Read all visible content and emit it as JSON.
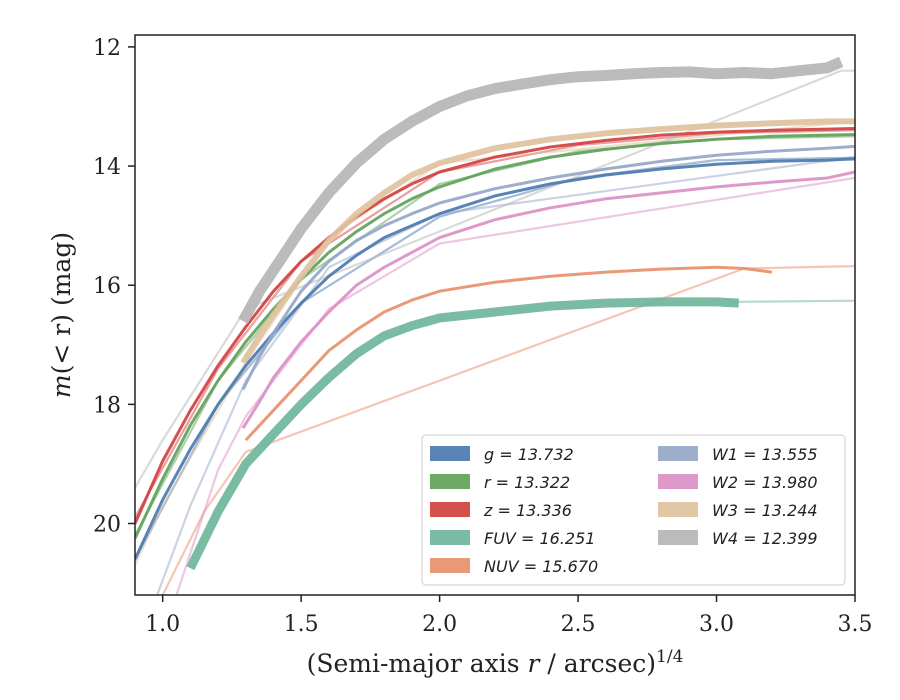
{
  "chart_data": {
    "type": "line",
    "xlabel_main": "(Semi-major axis ",
    "xlabel_var": "r",
    "xlabel_tail": " / arcsec)",
    "xlabel_exp": "1/4",
    "ylabel_main": "m",
    "ylabel_rest": "(< r) (mag)",
    "x_ticks": [
      "1.0",
      "1.5",
      "2.0",
      "2.5",
      "3.0",
      "3.5"
    ],
    "y_ticks": [
      "12",
      "14",
      "16",
      "18",
      "20"
    ],
    "xlim": [
      0.9,
      3.5
    ],
    "ylim": [
      21.2,
      11.8
    ],
    "y_inverted": true,
    "grid": false,
    "legend_position": "lower-right",
    "series": [
      {
        "name": "g",
        "label": "g = 13.732",
        "color": "#4c7aaf",
        "ext_x": [
          0.9,
          1.2,
          1.5,
          2.0,
          2.5,
          3.0,
          3.5
        ],
        "ext_y": [
          20.6,
          18.0,
          16.3,
          14.85,
          14.2,
          13.9,
          13.86
        ],
        "x": [
          0.9,
          1.0,
          1.1,
          1.2,
          1.3,
          1.4,
          1.5,
          1.6,
          1.7,
          1.8,
          1.9,
          2.0,
          2.2,
          2.4,
          2.6,
          2.8,
          3.0,
          3.2,
          3.4,
          3.5
        ],
        "y": [
          20.6,
          19.6,
          18.75,
          18.0,
          17.35,
          16.8,
          16.3,
          15.85,
          15.5,
          15.2,
          15.0,
          14.8,
          14.5,
          14.3,
          14.15,
          14.05,
          13.97,
          13.92,
          13.9,
          13.88
        ],
        "w": 3
      },
      {
        "name": "r",
        "label": "r = 13.322",
        "color": "#5fa25a",
        "ext_x": [
          0.9,
          1.2,
          1.5,
          2.0,
          2.5,
          3.0,
          3.5
        ],
        "ext_y": [
          20.2,
          17.6,
          15.9,
          14.3,
          13.75,
          13.55,
          13.5
        ],
        "x": [
          0.9,
          1.0,
          1.1,
          1.2,
          1.3,
          1.4,
          1.5,
          1.6,
          1.7,
          1.8,
          1.9,
          2.0,
          2.2,
          2.4,
          2.6,
          2.8,
          3.0,
          3.2,
          3.4,
          3.5
        ],
        "y": [
          20.25,
          19.25,
          18.35,
          17.6,
          16.95,
          16.4,
          15.9,
          15.45,
          15.1,
          14.8,
          14.55,
          14.35,
          14.05,
          13.85,
          13.72,
          13.62,
          13.55,
          13.5,
          13.48,
          13.47
        ],
        "w": 3
      },
      {
        "name": "z",
        "label": "z = 13.336",
        "color": "#d14040",
        "ext_x": [
          0.9,
          1.2,
          1.5,
          2.0,
          2.5,
          3.0,
          3.5
        ],
        "ext_y": [
          19.9,
          17.4,
          15.6,
          14.1,
          13.65,
          13.45,
          13.4
        ],
        "x": [
          0.9,
          1.0,
          1.1,
          1.2,
          1.3,
          1.4,
          1.5,
          1.6,
          1.7,
          1.8,
          1.9,
          2.0,
          2.2,
          2.4,
          2.6,
          2.8,
          3.0,
          3.2,
          3.4,
          3.5
        ],
        "y": [
          20.0,
          18.95,
          18.1,
          17.35,
          16.7,
          16.1,
          15.6,
          15.2,
          14.85,
          14.55,
          14.3,
          14.1,
          13.85,
          13.68,
          13.57,
          13.48,
          13.43,
          13.4,
          13.38,
          13.37
        ],
        "w": 3
      },
      {
        "name": "FUV",
        "label": "FUV = 16.251",
        "color": "#6fb59b",
        "ext_x": [
          3.05,
          3.5
        ],
        "ext_y": [
          16.28,
          16.26
        ],
        "x": [
          1.1,
          1.2,
          1.3,
          1.4,
          1.5,
          1.6,
          1.7,
          1.8,
          1.9,
          2.0,
          2.2,
          2.4,
          2.6,
          2.8,
          3.0,
          3.08
        ],
        "y": [
          20.75,
          19.8,
          19.0,
          18.5,
          18.0,
          17.55,
          17.15,
          16.85,
          16.68,
          16.55,
          16.45,
          16.35,
          16.3,
          16.28,
          16.28,
          16.3
        ],
        "w": 9
      },
      {
        "name": "NUV",
        "label": "NUV = 15.670",
        "color": "#e8906a",
        "ext_x": [
          1.0,
          1.15,
          1.3,
          3.1,
          3.5
        ],
        "ext_y": [
          21.2,
          19.8,
          18.8,
          15.72,
          15.68
        ],
        "x": [
          1.3,
          1.4,
          1.5,
          1.6,
          1.7,
          1.8,
          1.9,
          2.0,
          2.2,
          2.4,
          2.6,
          2.8,
          3.0,
          3.1,
          3.2
        ],
        "y": [
          18.6,
          18.1,
          17.6,
          17.1,
          16.75,
          16.45,
          16.25,
          16.1,
          15.95,
          15.85,
          15.78,
          15.73,
          15.7,
          15.72,
          15.78
        ],
        "w": 3
      },
      {
        "name": "W1",
        "label": "W1 = 13.555",
        "color": "#96a6c8",
        "ext_x": [
          0.98,
          1.1,
          1.3,
          1.6,
          2.0,
          3.5
        ],
        "ext_y": [
          21.2,
          19.7,
          17.6,
          15.7,
          14.8,
          13.85
        ],
        "x": [
          1.29,
          1.35,
          1.4,
          1.5,
          1.6,
          1.7,
          1.8,
          1.9,
          2.0,
          2.2,
          2.4,
          2.6,
          2.8,
          3.0,
          3.2,
          3.4,
          3.5
        ],
        "y": [
          17.75,
          17.2,
          16.8,
          16.1,
          15.6,
          15.25,
          15.0,
          14.8,
          14.62,
          14.38,
          14.2,
          14.05,
          13.92,
          13.82,
          13.75,
          13.7,
          13.67
        ],
        "w": 3
      },
      {
        "name": "W2",
        "label": "W2 = 13.980",
        "color": "#dc8fc5",
        "ext_x": [
          1.05,
          1.2,
          1.3,
          1.6,
          2.0,
          3.5
        ],
        "ext_y": [
          21.2,
          19.1,
          18.2,
          16.4,
          15.3,
          14.2
        ],
        "x": [
          1.29,
          1.35,
          1.4,
          1.5,
          1.6,
          1.7,
          1.8,
          1.9,
          2.0,
          2.2,
          2.4,
          2.6,
          2.8,
          3.0,
          3.2,
          3.4,
          3.5
        ],
        "y": [
          18.4,
          17.95,
          17.55,
          16.95,
          16.45,
          16.0,
          15.7,
          15.45,
          15.2,
          14.9,
          14.7,
          14.55,
          14.45,
          14.35,
          14.27,
          14.2,
          14.1
        ],
        "w": 3
      },
      {
        "name": "W3",
        "label": "W3 = 13.244",
        "color": "#e0c29e",
        "ext_x": [
          0.9,
          1.0,
          1.3,
          1.6,
          2.0,
          3.5
        ],
        "ext_y": [
          20.7,
          19.7,
          17.3,
          15.2,
          13.95,
          13.25
        ],
        "x": [
          1.29,
          1.35,
          1.4,
          1.5,
          1.6,
          1.7,
          1.8,
          1.9,
          2.0,
          2.2,
          2.4,
          2.6,
          2.8,
          3.0,
          3.2,
          3.4,
          3.5
        ],
        "y": [
          17.3,
          16.85,
          16.5,
          15.85,
          15.25,
          14.8,
          14.45,
          14.15,
          13.95,
          13.7,
          13.55,
          13.45,
          13.38,
          13.32,
          13.28,
          13.25,
          13.25
        ],
        "w": 6
      },
      {
        "name": "W4",
        "label": "W4 = 12.399",
        "color": "#b5b5b5",
        "ext_x": [
          0.9,
          1.0,
          1.3,
          3.45,
          3.5
        ],
        "ext_y": [
          19.4,
          18.6,
          16.4,
          12.4,
          12.4
        ],
        "x": [
          1.29,
          1.35,
          1.4,
          1.5,
          1.6,
          1.7,
          1.8,
          1.9,
          2.0,
          2.1,
          2.2,
          2.3,
          2.4,
          2.5,
          2.6,
          2.7,
          2.8,
          2.9,
          3.0,
          3.1,
          3.2,
          3.3,
          3.4,
          3.45
        ],
        "y": [
          16.6,
          16.1,
          15.75,
          15.05,
          14.45,
          13.95,
          13.55,
          13.25,
          13.0,
          12.82,
          12.7,
          12.62,
          12.55,
          12.5,
          12.48,
          12.45,
          12.43,
          12.42,
          12.45,
          12.43,
          12.45,
          12.4,
          12.35,
          12.25
        ],
        "w": 11
      }
    ]
  }
}
